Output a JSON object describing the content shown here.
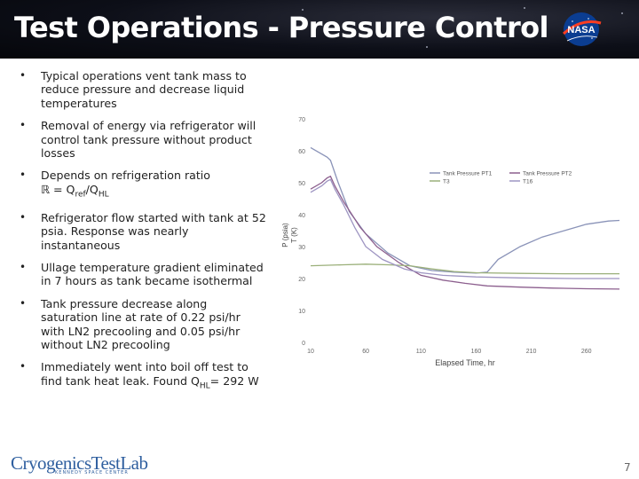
{
  "slide": {
    "title": "Test Operations - Pressure Control",
    "page_number": "7",
    "footer_logo": "CryogenicsTestLab",
    "footer_logo_subtitle": "KENNEDY SPACE CENTER",
    "nasa_logo": "NASA"
  },
  "bullets": [
    {
      "text": "Typical operations vent tank mass to reduce pressure and decrease liquid temperatures"
    },
    {
      "text": "Removal of energy via refrigerator will control tank pressure without product losses"
    },
    {
      "pre": "Depends on refrigeration ratio ",
      "line2": "ℝ = Q",
      "sub1": "ref",
      "mid": "/Q",
      "sub2": "HL"
    },
    {
      "text": "Refrigerator flow started with tank at 52 psia. Response was nearly instantaneous"
    },
    {
      "text": "Ullage temperature gradient eliminated in 7 hours as tank became isothermal"
    },
    {
      "text": "Tank pressure decrease along saturation line at rate of 0.22 psi/hr with LN2 precooling and 0.05 psi/hr without LN2 precooling"
    },
    {
      "pre": "Immediately went into boil off test to find tank heat leak. Found Q",
      "sub": "HL",
      "post": "= 292 W"
    }
  ],
  "chart_data": {
    "type": "line",
    "xlabel": "Elapsed Time, hr",
    "ylabel": "P (psia)\nT (K)",
    "xlim": [
      10,
      290
    ],
    "ylim": [
      0,
      70
    ],
    "x_ticks": [
      10,
      60,
      110,
      160,
      210,
      260
    ],
    "y_ticks": [
      0,
      10,
      20,
      30,
      40,
      50,
      60,
      70
    ],
    "legend_position": "top-right",
    "series": [
      {
        "name": "Tank Pressure PT1",
        "color": "#8a93b8",
        "points": [
          [
            10,
            61
          ],
          [
            25,
            58
          ],
          [
            28,
            57
          ],
          [
            30,
            55
          ],
          [
            35,
            50
          ],
          [
            45,
            41
          ],
          [
            60,
            34
          ],
          [
            80,
            28
          ],
          [
            100,
            24
          ],
          [
            120,
            22.5
          ],
          [
            140,
            22
          ],
          [
            160,
            21.7
          ],
          [
            170,
            22
          ],
          [
            180,
            26
          ],
          [
            200,
            30
          ],
          [
            220,
            33
          ],
          [
            240,
            35
          ],
          [
            260,
            37
          ],
          [
            280,
            38
          ],
          [
            290,
            38.2
          ]
        ]
      },
      {
        "name": "Tank Pressure PT2",
        "color": "#8c5f8e",
        "points": [
          [
            10,
            48
          ],
          [
            20,
            50
          ],
          [
            25,
            51.5
          ],
          [
            28,
            52
          ],
          [
            32,
            49
          ],
          [
            40,
            44
          ],
          [
            55,
            36
          ],
          [
            70,
            30
          ],
          [
            90,
            25
          ],
          [
            110,
            21
          ],
          [
            130,
            19.5
          ],
          [
            150,
            18.5
          ],
          [
            170,
            17.7
          ],
          [
            200,
            17.3
          ],
          [
            230,
            17
          ],
          [
            260,
            16.8
          ],
          [
            290,
            16.7
          ]
        ]
      },
      {
        "name": "T3",
        "color": "#9bb07a",
        "points": [
          [
            10,
            24
          ],
          [
            40,
            24.3
          ],
          [
            60,
            24.5
          ],
          [
            80,
            24.3
          ],
          [
            100,
            24
          ],
          [
            110,
            23.5
          ],
          [
            120,
            23
          ],
          [
            140,
            22.2
          ],
          [
            160,
            21.8
          ],
          [
            200,
            21.6
          ],
          [
            240,
            21.5
          ],
          [
            290,
            21.5
          ]
        ]
      },
      {
        "name": "T16",
        "color": "#9e95c2",
        "points": [
          [
            10,
            47
          ],
          [
            20,
            49
          ],
          [
            25,
            50.5
          ],
          [
            28,
            51
          ],
          [
            32,
            48
          ],
          [
            40,
            43
          ],
          [
            50,
            36
          ],
          [
            60,
            30
          ],
          [
            75,
            26
          ],
          [
            95,
            23
          ],
          [
            110,
            21.8
          ],
          [
            130,
            21
          ],
          [
            160,
            20.5
          ],
          [
            200,
            20.2
          ],
          [
            250,
            20
          ],
          [
            290,
            20
          ]
        ]
      }
    ]
  }
}
